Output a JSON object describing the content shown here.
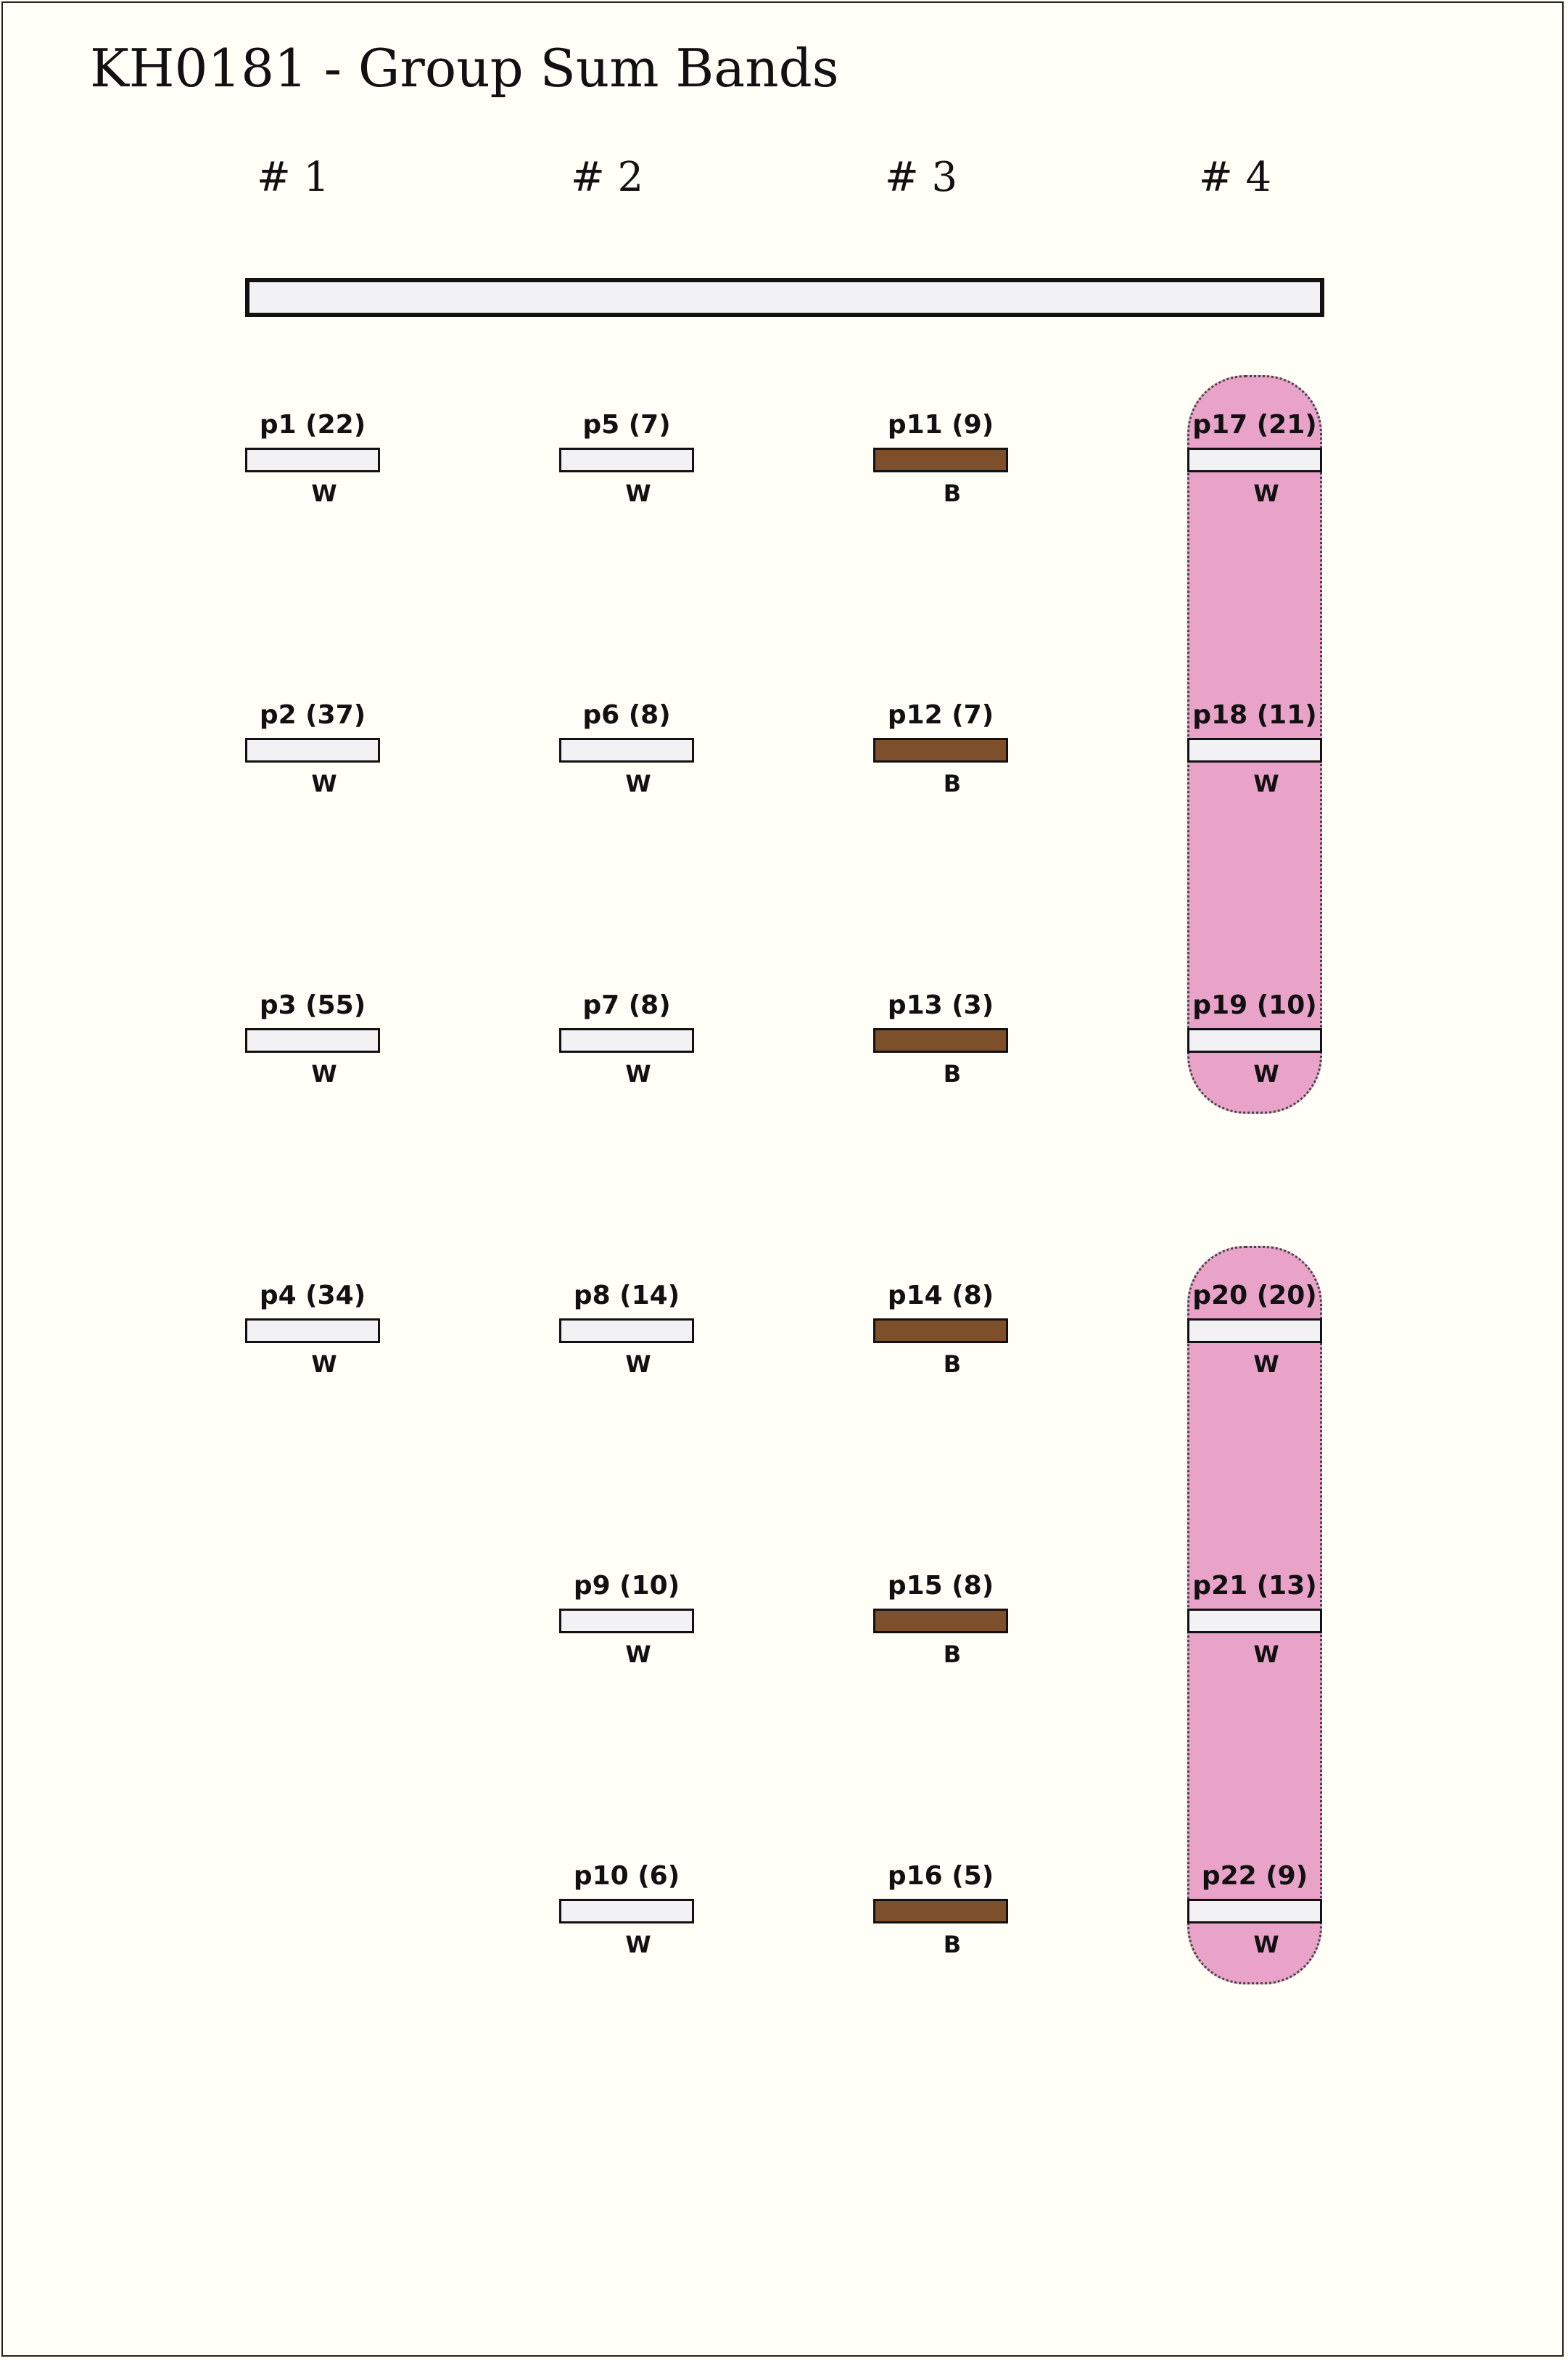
{
  "title": "KH0181 - Group Sum Bands",
  "columns": [
    "# 1",
    "# 2",
    "# 3",
    "# 4"
  ],
  "colors": {
    "W": "#f2f2f4",
    "B": "#7e4f2b",
    "group": "#e9a3c9"
  },
  "bands": [
    [
      {
        "label": "p1 (22)",
        "code": "W"
      },
      {
        "label": "p2 (37)",
        "code": "W"
      },
      {
        "label": "p3 (55)",
        "code": "W"
      },
      {
        "label": "p4 (34)",
        "code": "W"
      }
    ],
    [
      {
        "label": "p5 (7)",
        "code": "W"
      },
      {
        "label": "p6 (8)",
        "code": "W"
      },
      {
        "label": "p7 (8)",
        "code": "W"
      },
      {
        "label": "p8 (14)",
        "code": "W"
      },
      {
        "label": "p9 (10)",
        "code": "W"
      },
      {
        "label": "p10 (6)",
        "code": "W"
      }
    ],
    [
      {
        "label": "p11 (9)",
        "code": "B"
      },
      {
        "label": "p12 (7)",
        "code": "B"
      },
      {
        "label": "p13 (3)",
        "code": "B"
      },
      {
        "label": "p14 (8)",
        "code": "B"
      },
      {
        "label": "p15 (8)",
        "code": "B"
      },
      {
        "label": "p16 (5)",
        "code": "B"
      }
    ],
    [
      {
        "label": "p17 (21)",
        "code": "W"
      },
      {
        "label": "p18 (11)",
        "code": "W"
      },
      {
        "label": "p19 (10)",
        "code": "W"
      },
      {
        "label": "p20 (20)",
        "code": "W"
      },
      {
        "label": "p21 (13)",
        "code": "W"
      },
      {
        "label": "p22 (9)",
        "code": "W"
      }
    ]
  ],
  "groups": [
    {
      "column": 3,
      "from_row": 0,
      "to_row": 2
    },
    {
      "column": 3,
      "from_row": 3,
      "to_row": 5
    }
  ]
}
